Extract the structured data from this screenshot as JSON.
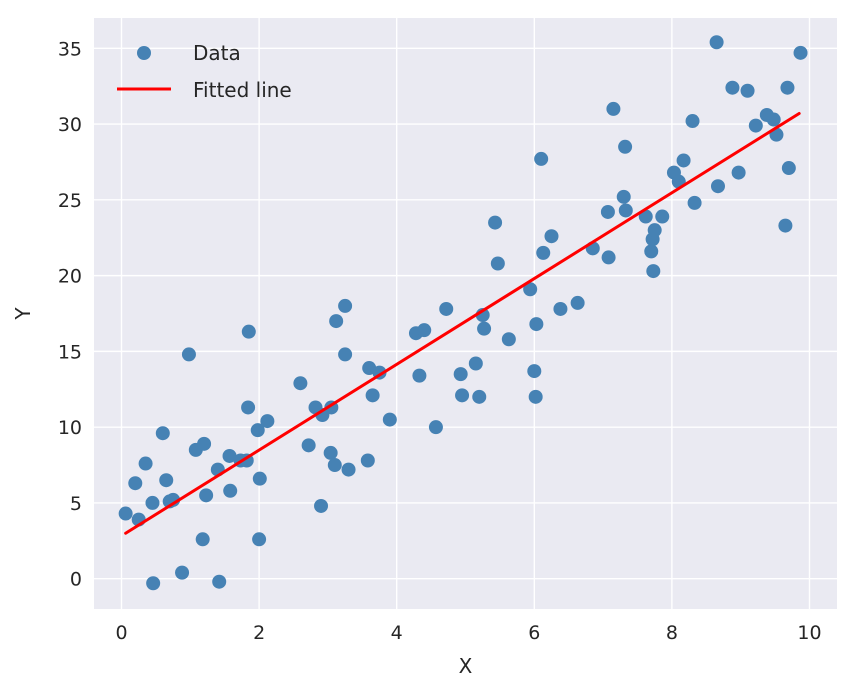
{
  "chart_data": {
    "type": "scatter",
    "title": "",
    "xlabel": "X",
    "ylabel": "Y",
    "xlim": [
      -0.4,
      10.4
    ],
    "ylim": [
      -2.0,
      37.0
    ],
    "xticks": [
      0,
      2,
      4,
      6,
      8,
      10
    ],
    "yticks": [
      0,
      5,
      10,
      15,
      20,
      25,
      30,
      35
    ],
    "grid": true,
    "legend_placement": "top-left",
    "colors": {
      "background": "#eaeaf2",
      "grid": "#ffffff",
      "points": "#4682b4",
      "line": "#ff0000"
    },
    "series": [
      {
        "name": "Data",
        "kind": "scatter",
        "points": [
          [
            0.06,
            4.3
          ],
          [
            0.2,
            6.3
          ],
          [
            0.25,
            3.9
          ],
          [
            0.35,
            7.6
          ],
          [
            0.45,
            5.0
          ],
          [
            0.46,
            -0.3
          ],
          [
            0.6,
            9.6
          ],
          [
            0.65,
            6.5
          ],
          [
            0.7,
            5.1
          ],
          [
            0.75,
            5.2
          ],
          [
            0.88,
            0.4
          ],
          [
            0.98,
            14.8
          ],
          [
            1.08,
            8.5
          ],
          [
            1.18,
            2.6
          ],
          [
            1.2,
            8.9
          ],
          [
            1.23,
            5.5
          ],
          [
            1.4,
            7.2
          ],
          [
            1.42,
            -0.2
          ],
          [
            1.57,
            8.1
          ],
          [
            1.58,
            5.8
          ],
          [
            1.73,
            7.8
          ],
          [
            1.82,
            7.8
          ],
          [
            1.84,
            11.3
          ],
          [
            1.85,
            16.3
          ],
          [
            1.98,
            9.8
          ],
          [
            2.0,
            2.6
          ],
          [
            2.01,
            6.6
          ],
          [
            2.12,
            10.4
          ],
          [
            2.6,
            12.9
          ],
          [
            2.72,
            8.8
          ],
          [
            2.82,
            11.3
          ],
          [
            2.9,
            4.8
          ],
          [
            2.92,
            10.8
          ],
          [
            3.04,
            8.3
          ],
          [
            3.05,
            11.3
          ],
          [
            3.1,
            7.5
          ],
          [
            3.12,
            17.0
          ],
          [
            3.25,
            18.0
          ],
          [
            3.25,
            14.8
          ],
          [
            3.3,
            7.2
          ],
          [
            3.58,
            7.8
          ],
          [
            3.6,
            13.9
          ],
          [
            3.65,
            12.1
          ],
          [
            3.75,
            13.6
          ],
          [
            3.9,
            10.5
          ],
          [
            4.28,
            16.2
          ],
          [
            4.33,
            13.4
          ],
          [
            4.4,
            16.4
          ],
          [
            4.57,
            10.0
          ],
          [
            4.72,
            17.8
          ],
          [
            4.93,
            13.5
          ],
          [
            4.95,
            12.1
          ],
          [
            5.15,
            14.2
          ],
          [
            5.2,
            12.0
          ],
          [
            5.25,
            17.4
          ],
          [
            5.27,
            16.5
          ],
          [
            5.43,
            23.5
          ],
          [
            5.47,
            20.8
          ],
          [
            5.63,
            15.8
          ],
          [
            5.94,
            19.1
          ],
          [
            6.0,
            13.7
          ],
          [
            6.02,
            12.0
          ],
          [
            6.03,
            16.8
          ],
          [
            6.1,
            27.7
          ],
          [
            6.13,
            21.5
          ],
          [
            6.25,
            22.6
          ],
          [
            6.38,
            17.8
          ],
          [
            6.63,
            18.2
          ],
          [
            6.85,
            21.8
          ],
          [
            7.07,
            24.2
          ],
          [
            7.08,
            21.2
          ],
          [
            7.15,
            31.0
          ],
          [
            7.3,
            25.2
          ],
          [
            7.32,
            28.5
          ],
          [
            7.33,
            24.3
          ],
          [
            7.62,
            23.9
          ],
          [
            7.7,
            21.6
          ],
          [
            7.72,
            22.4
          ],
          [
            7.73,
            20.3
          ],
          [
            7.75,
            23.0
          ],
          [
            7.86,
            23.9
          ],
          [
            8.03,
            26.8
          ],
          [
            8.1,
            26.2
          ],
          [
            8.17,
            27.6
          ],
          [
            8.3,
            30.2
          ],
          [
            8.33,
            24.8
          ],
          [
            8.65,
            35.4
          ],
          [
            8.67,
            25.9
          ],
          [
            8.88,
            32.4
          ],
          [
            8.97,
            26.8
          ],
          [
            9.1,
            32.2
          ],
          [
            9.22,
            29.9
          ],
          [
            9.38,
            30.6
          ],
          [
            9.48,
            30.3
          ],
          [
            9.52,
            29.3
          ],
          [
            9.65,
            23.3
          ],
          [
            9.68,
            32.4
          ],
          [
            9.7,
            27.1
          ],
          [
            9.87,
            34.7
          ]
        ]
      },
      {
        "name": "Fitted line",
        "kind": "line",
        "points": [
          [
            0.06,
            3.0
          ],
          [
            9.85,
            30.7
          ]
        ]
      }
    ]
  }
}
